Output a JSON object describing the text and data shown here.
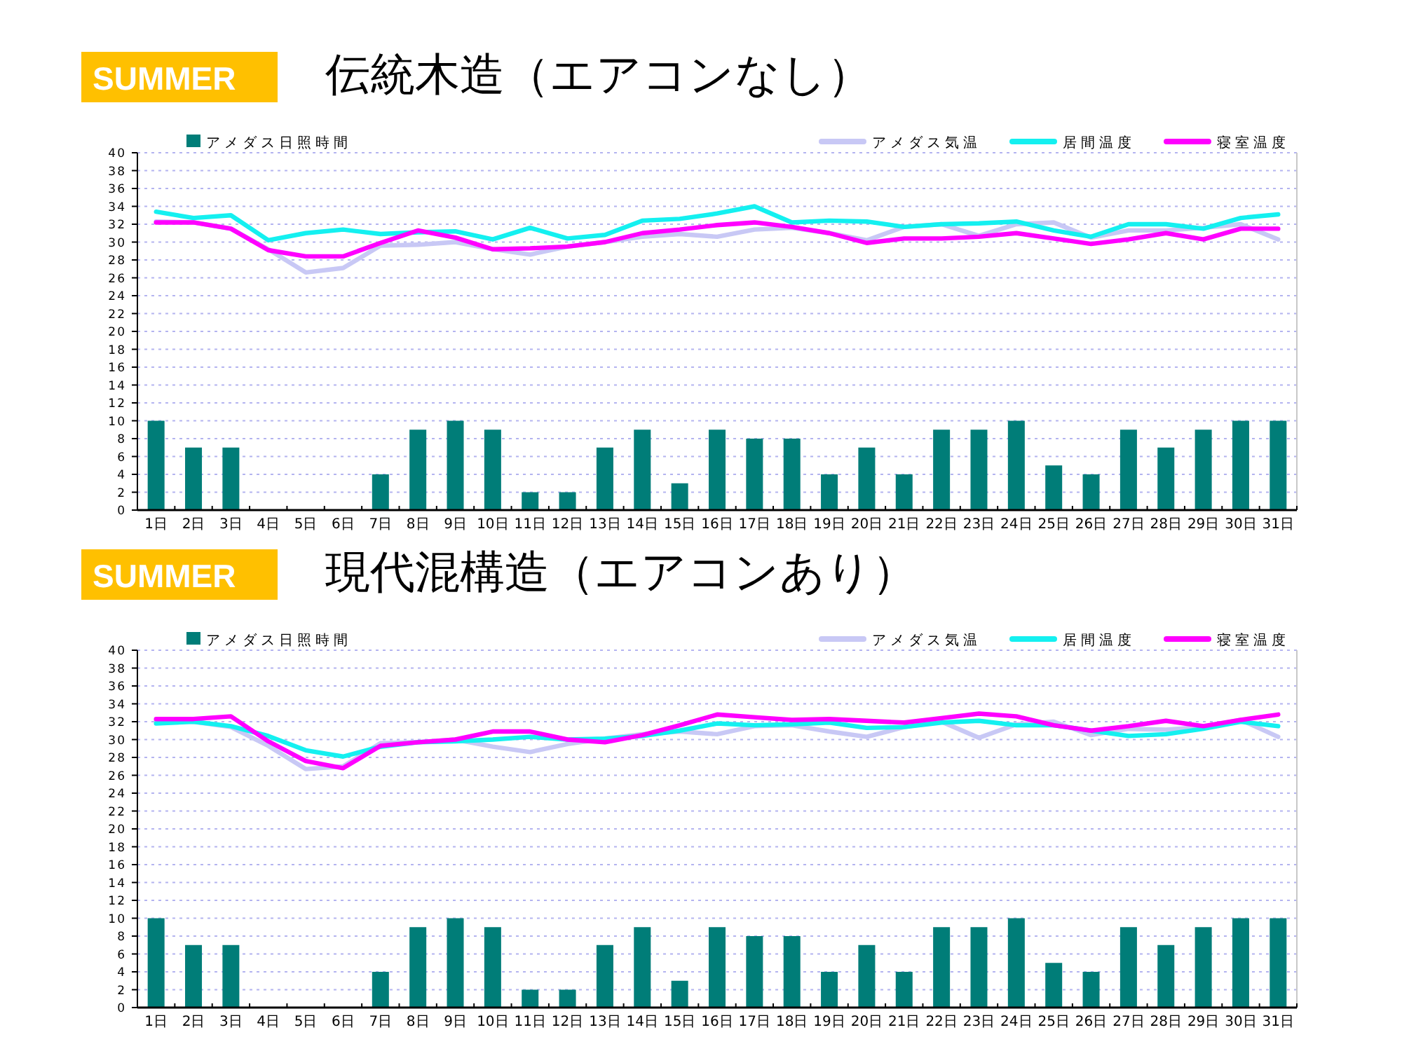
{
  "chart_data": [
    {
      "type": "bar",
      "title": "伝統木造（エアコンなし）",
      "subtitle": "SUMMER",
      "categories": [
        "1日",
        "2日",
        "3日",
        "4日",
        "5日",
        "6日",
        "7日",
        "8日",
        "9日",
        "10日",
        "11日",
        "12日",
        "13日",
        "14日",
        "15日",
        "16日",
        "17日",
        "18日",
        "19日",
        "20日",
        "21日",
        "22日",
        "23日",
        "24日",
        "25日",
        "26日",
        "27日",
        "28日",
        "29日",
        "30日",
        "31日"
      ],
      "series": [
        {
          "name": "アメダス日照時間",
          "color": "#007d78",
          "values": [
            10,
            7,
            7,
            0,
            0,
            0,
            4,
            9,
            10,
            9,
            2,
            2,
            7,
            9,
            3,
            9,
            8,
            8,
            4,
            7,
            4,
            9,
            9,
            10,
            5,
            4,
            9,
            7,
            9,
            10,
            10
          ]
        },
        {
          "name": "アメダス気温",
          "type": "line",
          "color": "#c8c8f5",
          "values": [
            32.3,
            32.2,
            31.5,
            29.2,
            26.6,
            27.1,
            29.6,
            29.7,
            30.0,
            29.2,
            28.6,
            29.5,
            30.0,
            30.6,
            30.9,
            30.6,
            31.4,
            31.6,
            31.0,
            30.2,
            31.7,
            32.0,
            30.7,
            32.0,
            32.2,
            30.5,
            31.3,
            31.3,
            31.6,
            32.0,
            30.3
          ]
        },
        {
          "name": "居間温度",
          "type": "line",
          "color": "#14f0f0",
          "values": [
            33.4,
            32.7,
            33.0,
            30.2,
            31.0,
            31.4,
            30.9,
            31.1,
            31.2,
            30.3,
            31.6,
            30.4,
            30.8,
            32.4,
            32.6,
            33.2,
            34.0,
            32.2,
            32.4,
            32.3,
            31.7,
            32.0,
            32.1,
            32.3,
            31.3,
            30.6,
            32.0,
            32.0,
            31.5,
            32.7,
            33.1
          ]
        },
        {
          "name": "寝室温度",
          "type": "line",
          "color": "#ff00ff",
          "values": [
            32.2,
            32.2,
            31.5,
            29.1,
            28.4,
            28.4,
            29.9,
            31.3,
            30.5,
            29.2,
            29.3,
            29.5,
            30.0,
            31.0,
            31.4,
            31.9,
            32.2,
            31.7,
            31.0,
            29.9,
            30.4,
            30.4,
            30.6,
            31.0,
            30.4,
            29.8,
            30.3,
            31.0,
            30.3,
            31.5,
            31.5
          ]
        }
      ],
      "ylim": [
        0,
        40
      ],
      "yticks": [
        0,
        2,
        4,
        6,
        8,
        10,
        12,
        14,
        16,
        18,
        20,
        22,
        24,
        26,
        28,
        30,
        32,
        34,
        36,
        38,
        40
      ],
      "grid": "y",
      "legend": "top"
    },
    {
      "type": "bar",
      "title": "現代混構造（エアコンあり）",
      "subtitle": "SUMMER",
      "categories": [
        "1日",
        "2日",
        "3日",
        "4日",
        "5日",
        "6日",
        "7日",
        "8日",
        "9日",
        "10日",
        "11日",
        "12日",
        "13日",
        "14日",
        "15日",
        "16日",
        "17日",
        "18日",
        "19日",
        "20日",
        "21日",
        "22日",
        "23日",
        "24日",
        "25日",
        "26日",
        "27日",
        "28日",
        "29日",
        "30日",
        "31日"
      ],
      "series": [
        {
          "name": "アメダス日照時間",
          "color": "#007d78",
          "values": [
            10,
            7,
            7,
            0,
            0,
            0,
            4,
            9,
            10,
            9,
            2,
            2,
            7,
            9,
            3,
            9,
            8,
            8,
            4,
            7,
            4,
            9,
            9,
            10,
            5,
            4,
            9,
            7,
            9,
            10,
            10
          ]
        },
        {
          "name": "アメダス気温",
          "type": "line",
          "color": "#c8c8f5",
          "values": [
            32.1,
            32.0,
            31.4,
            29.3,
            26.7,
            27.0,
            29.6,
            29.7,
            30.0,
            29.2,
            28.6,
            29.5,
            30.1,
            30.6,
            30.9,
            30.6,
            31.5,
            31.6,
            30.9,
            30.3,
            31.4,
            32.0,
            30.2,
            31.7,
            32.0,
            30.5,
            31.2,
            31.1,
            31.4,
            32.2,
            30.3
          ]
        },
        {
          "name": "居間温度",
          "type": "line",
          "color": "#14f0f0",
          "values": [
            31.8,
            32.0,
            31.5,
            30.4,
            28.8,
            28.1,
            29.2,
            29.7,
            29.8,
            30.0,
            30.3,
            30.0,
            30.1,
            30.4,
            31.0,
            31.8,
            31.6,
            31.7,
            31.9,
            31.3,
            31.4,
            31.9,
            32.1,
            31.6,
            31.6,
            31.0,
            30.4,
            30.6,
            31.2,
            32.0,
            31.5
          ]
        },
        {
          "name": "寝室温度",
          "type": "line",
          "color": "#ff00ff",
          "values": [
            32.3,
            32.3,
            32.6,
            29.8,
            27.6,
            26.8,
            29.3,
            29.7,
            30.0,
            30.9,
            30.9,
            30.0,
            29.7,
            30.5,
            31.6,
            32.8,
            32.5,
            32.2,
            32.3,
            32.1,
            31.9,
            32.4,
            32.9,
            32.6,
            31.6,
            31.0,
            31.5,
            32.1,
            31.5,
            32.2,
            32.8
          ]
        }
      ],
      "ylim": [
        0,
        40
      ],
      "yticks": [
        0,
        2,
        4,
        6,
        8,
        10,
        12,
        14,
        16,
        18,
        20,
        22,
        24,
        26,
        28,
        30,
        32,
        34,
        36,
        38,
        40
      ],
      "grid": "y",
      "legend": "top"
    }
  ]
}
